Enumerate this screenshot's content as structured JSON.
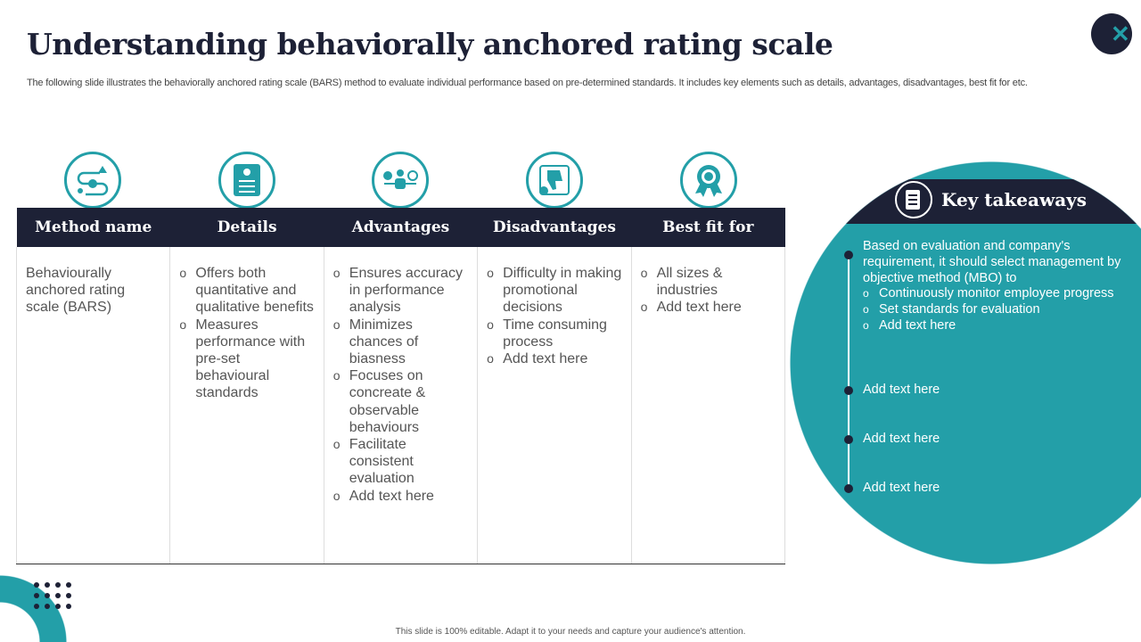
{
  "title": "Understanding behaviorally anchored rating scale",
  "subtitle": "The following slide illustrates the behaviorally anchored rating scale (BARS) method to evaluate individual performance based on pre-determined standards. It includes key elements such as details, advantages, disadvantages, best fit for etc.",
  "colors": {
    "teal": "#239fa8",
    "navy": "#1d2136"
  },
  "columns": [
    {
      "header": "Method name",
      "icon": "process-cycle-icon",
      "text": "Behaviourally anchored rating scale (BARS)"
    },
    {
      "header": "Details",
      "icon": "profile-document-icon",
      "items": [
        "Offers both quantitative and qualitative benefits",
        "Measures performance with pre-set behavioural standards"
      ]
    },
    {
      "header": "Advantages",
      "icon": "people-balance-icon",
      "items": [
        "Ensures accuracy in performance analysis",
        "Minimizes chances of biasness",
        "Focuses on concreate & observable behaviours",
        "Facilitate consistent evaluation",
        "Add text here"
      ]
    },
    {
      "header": "Disadvantages",
      "icon": "thumbs-down-icon",
      "items": [
        "Difficulty in making promotional decisions",
        "Time consuming process",
        "Add text here"
      ]
    },
    {
      "header": "Best fit for",
      "icon": "award-badge-icon",
      "items": [
        "All sizes & industries",
        "Add text here"
      ]
    }
  ],
  "takeaways": {
    "title": "Key takeaways",
    "icon": "notes-icon",
    "main": "Based on evaluation and company's requirement, it should select management by objective method (MBO) to",
    "sub": [
      "Continuously monitor employee progress",
      "Set standards for evaluation",
      "Add text here"
    ],
    "more": [
      "Add text here",
      "Add text here",
      "Add text here"
    ]
  },
  "footer": "This slide is 100% editable. Adapt it to your needs and capture your audience's attention."
}
